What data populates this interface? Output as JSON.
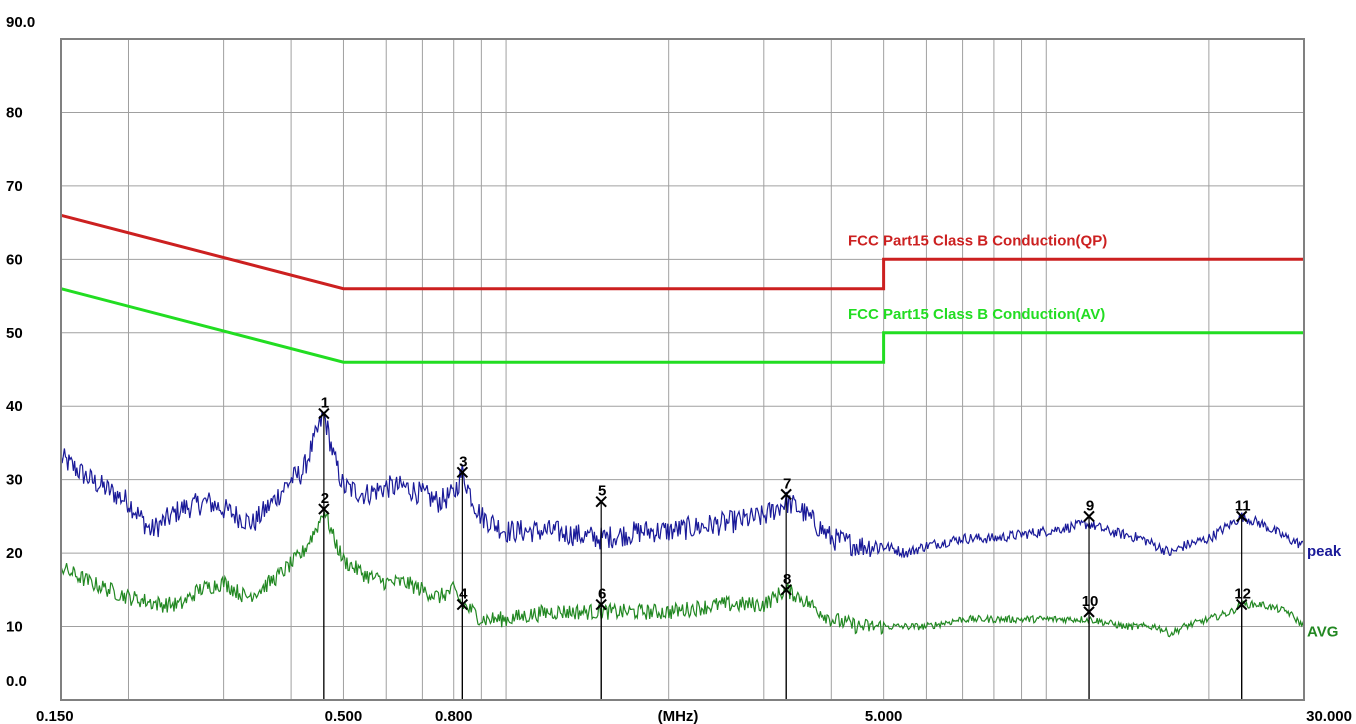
{
  "chart_data": {
    "type": "line",
    "title": "",
    "xlabel": "(MHz)",
    "ylabel": "",
    "x_scale": "log",
    "xlim": [
      0.15,
      30.0
    ],
    "ylim": [
      0,
      90
    ],
    "grid": true,
    "y_ticks": [
      {
        "value": 0,
        "label": "0.0"
      },
      {
        "value": 10,
        "label": "10"
      },
      {
        "value": 20,
        "label": "20"
      },
      {
        "value": 30,
        "label": "30"
      },
      {
        "value": 40,
        "label": "40"
      },
      {
        "value": 50,
        "label": "50"
      },
      {
        "value": 60,
        "label": "60"
      },
      {
        "value": 70,
        "label": "70"
      },
      {
        "value": 80,
        "label": "80"
      },
      {
        "value": 90,
        "label": "90.0"
      }
    ],
    "x_ticks": [
      {
        "value": 0.15,
        "label": "0.150"
      },
      {
        "value": 0.5,
        "label": "0.500"
      },
      {
        "value": 0.8,
        "label": "0.800"
      },
      {
        "value": 5.0,
        "label": "5.000"
      },
      {
        "value": 30.0,
        "label": "30.000"
      }
    ],
    "x_gridlines": [
      0.2,
      0.3,
      0.4,
      0.5,
      0.6,
      0.7,
      0.8,
      0.9,
      1,
      2,
      3,
      4,
      5,
      6,
      7,
      8,
      9,
      10,
      20
    ],
    "limits": [
      {
        "name": "FCC Part15 Class B Conduction(QP)",
        "color": "#cc2020",
        "points": [
          [
            0.15,
            66
          ],
          [
            0.5,
            56
          ],
          [
            5.0,
            56
          ],
          [
            5.0,
            60
          ],
          [
            30.0,
            60
          ]
        ]
      },
      {
        "name": "FCC Part15 Class B Conduction(AV)",
        "color": "#22dd22",
        "points": [
          [
            0.15,
            56
          ],
          [
            0.5,
            46
          ],
          [
            5.0,
            46
          ],
          [
            5.0,
            50
          ],
          [
            30.0,
            50
          ]
        ]
      }
    ],
    "series": [
      {
        "name": "peak",
        "color": "#1a1a99",
        "points": [
          [
            0.15,
            33
          ],
          [
            0.17,
            30
          ],
          [
            0.2,
            27
          ],
          [
            0.22,
            23
          ],
          [
            0.25,
            26
          ],
          [
            0.28,
            27
          ],
          [
            0.3,
            26
          ],
          [
            0.34,
            24
          ],
          [
            0.37,
            27
          ],
          [
            0.4,
            30
          ],
          [
            0.42,
            31
          ],
          [
            0.45,
            37
          ],
          [
            0.46,
            39
          ],
          [
            0.48,
            33
          ],
          [
            0.5,
            29
          ],
          [
            0.55,
            28
          ],
          [
            0.6,
            29
          ],
          [
            0.65,
            29
          ],
          [
            0.7,
            28
          ],
          [
            0.75,
            27
          ],
          [
            0.8,
            28
          ],
          [
            0.83,
            31
          ],
          [
            0.87,
            27
          ],
          [
            0.9,
            25
          ],
          [
            1.0,
            23
          ],
          [
            1.2,
            23
          ],
          [
            1.5,
            22
          ],
          [
            1.8,
            23
          ],
          [
            2.0,
            23
          ],
          [
            2.5,
            24
          ],
          [
            3.0,
            25
          ],
          [
            3.3,
            27
          ],
          [
            3.5,
            26
          ],
          [
            4.0,
            22
          ],
          [
            4.5,
            21
          ],
          [
            5.0,
            21
          ],
          [
            5.5,
            20
          ],
          [
            6.0,
            21
          ],
          [
            7.0,
            22
          ],
          [
            8.0,
            22
          ],
          [
            10.0,
            23
          ],
          [
            12.0,
            24
          ],
          [
            13.0,
            23
          ],
          [
            15.0,
            22
          ],
          [
            17.0,
            20
          ],
          [
            18.0,
            21
          ],
          [
            20.0,
            22
          ],
          [
            22.0,
            24
          ],
          [
            23.0,
            25
          ],
          [
            25.0,
            24
          ],
          [
            28.0,
            22
          ],
          [
            30.0,
            21
          ]
        ]
      },
      {
        "name": "AVG",
        "color": "#228822",
        "points": [
          [
            0.15,
            18
          ],
          [
            0.17,
            16
          ],
          [
            0.2,
            14
          ],
          [
            0.23,
            13
          ],
          [
            0.25,
            13
          ],
          [
            0.27,
            15
          ],
          [
            0.3,
            16
          ],
          [
            0.33,
            14
          ],
          [
            0.35,
            15
          ],
          [
            0.38,
            17
          ],
          [
            0.42,
            20
          ],
          [
            0.45,
            24
          ],
          [
            0.46,
            26
          ],
          [
            0.48,
            22
          ],
          [
            0.5,
            19
          ],
          [
            0.55,
            17
          ],
          [
            0.6,
            16
          ],
          [
            0.65,
            16
          ],
          [
            0.7,
            15
          ],
          [
            0.75,
            14
          ],
          [
            0.8,
            15
          ],
          [
            0.83,
            13
          ],
          [
            0.87,
            12
          ],
          [
            0.9,
            11
          ],
          [
            1.0,
            11
          ],
          [
            1.2,
            12
          ],
          [
            1.5,
            12
          ],
          [
            1.8,
            12
          ],
          [
            2.0,
            12
          ],
          [
            2.5,
            13
          ],
          [
            3.0,
            13
          ],
          [
            3.3,
            15
          ],
          [
            3.5,
            14
          ],
          [
            4.0,
            11
          ],
          [
            4.5,
            10
          ],
          [
            5.0,
            10
          ],
          [
            6.0,
            10
          ],
          [
            7.0,
            11
          ],
          [
            8.0,
            11
          ],
          [
            10.0,
            11
          ],
          [
            12.0,
            11
          ],
          [
            14.0,
            10
          ],
          [
            16.0,
            10
          ],
          [
            17.0,
            9
          ],
          [
            18.0,
            10
          ],
          [
            20.0,
            11
          ],
          [
            22.0,
            12
          ],
          [
            23.0,
            13
          ],
          [
            25.0,
            13
          ],
          [
            28.0,
            12
          ],
          [
            30.0,
            10
          ]
        ]
      }
    ],
    "markers": [
      {
        "label": "1",
        "x": 0.46,
        "y": 39
      },
      {
        "label": "2",
        "x": 0.46,
        "y": 26
      },
      {
        "label": "3",
        "x": 0.83,
        "y": 31
      },
      {
        "label": "4",
        "x": 0.83,
        "y": 13
      },
      {
        "label": "5",
        "x": 1.5,
        "y": 27
      },
      {
        "label": "6",
        "x": 1.5,
        "y": 13
      },
      {
        "label": "7",
        "x": 3.3,
        "y": 28
      },
      {
        "label": "8",
        "x": 3.3,
        "y": 15
      },
      {
        "label": "9",
        "x": 12.0,
        "y": 25
      },
      {
        "label": "10",
        "x": 12.0,
        "y": 12
      },
      {
        "label": "11",
        "x": 23.0,
        "y": 25
      },
      {
        "label": "12",
        "x": 23.0,
        "y": 13
      }
    ]
  }
}
